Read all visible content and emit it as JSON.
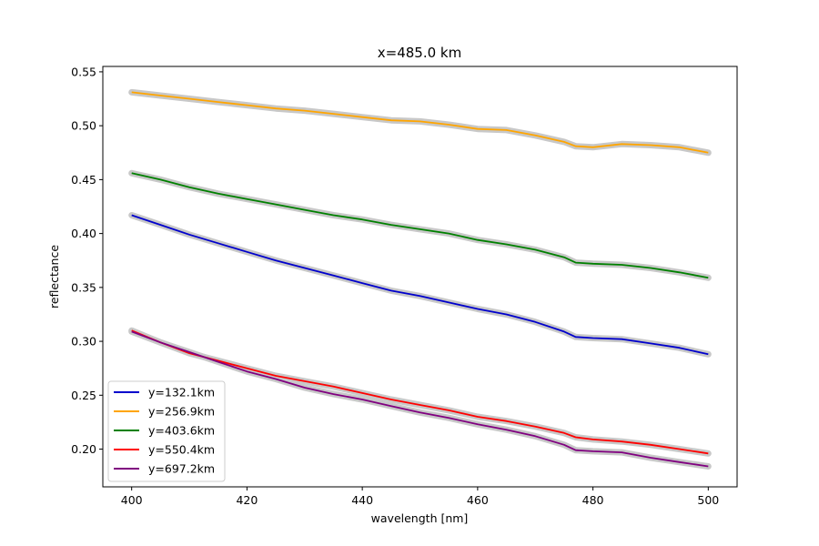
{
  "chart_data": {
    "type": "line",
    "title": "x=485.0 km",
    "xlabel": "wavelength [nm]",
    "ylabel": "reflectance",
    "xlim": [
      395,
      505
    ],
    "ylim": [
      0.165,
      0.555
    ],
    "xticks": [
      400,
      420,
      440,
      460,
      480,
      500
    ],
    "yticks": [
      0.2,
      0.25,
      0.3,
      0.35,
      0.4,
      0.45,
      0.5,
      0.55
    ],
    "ytick_labels": [
      "0.20",
      "0.25",
      "0.30",
      "0.35",
      "0.40",
      "0.45",
      "0.50",
      "0.55"
    ],
    "xtick_labels": [
      "400",
      "420",
      "440",
      "460",
      "480",
      "500"
    ],
    "grid": false,
    "legend_position": "lower-left",
    "uncertainty_band_color": "#c8c8c8",
    "x": [
      400,
      405,
      410,
      415,
      420,
      425,
      430,
      435,
      440,
      445,
      450,
      455,
      460,
      465,
      470,
      475,
      477,
      480,
      485,
      490,
      495,
      500
    ],
    "series": [
      {
        "name": "y=132.1km",
        "color": "#0000cc",
        "values": [
          0.417,
          0.408,
          0.399,
          0.391,
          0.383,
          0.375,
          0.368,
          0.361,
          0.354,
          0.347,
          0.342,
          0.336,
          0.33,
          0.325,
          0.318,
          0.309,
          0.304,
          0.303,
          0.302,
          0.298,
          0.294,
          0.288
        ]
      },
      {
        "name": "y=256.9km",
        "color": "#ffa500",
        "values": [
          0.531,
          0.528,
          0.525,
          0.522,
          0.519,
          0.516,
          0.514,
          0.511,
          0.508,
          0.505,
          0.504,
          0.501,
          0.497,
          0.496,
          0.491,
          0.485,
          0.481,
          0.48,
          0.483,
          0.482,
          0.48,
          0.475
        ]
      },
      {
        "name": "y=403.6km",
        "color": "#008000",
        "values": [
          0.456,
          0.45,
          0.443,
          0.437,
          0.432,
          0.427,
          0.422,
          0.417,
          0.413,
          0.408,
          0.404,
          0.4,
          0.394,
          0.39,
          0.385,
          0.378,
          0.373,
          0.372,
          0.371,
          0.368,
          0.364,
          0.359
        ]
      },
      {
        "name": "y=550.4km",
        "color": "#ff0000",
        "values": [
          0.31,
          0.299,
          0.289,
          0.282,
          0.275,
          0.268,
          0.263,
          0.258,
          0.252,
          0.246,
          0.241,
          0.236,
          0.23,
          0.226,
          0.221,
          0.215,
          0.211,
          0.209,
          0.207,
          0.204,
          0.2,
          0.196
        ]
      },
      {
        "name": "y=697.2km",
        "color": "#800080",
        "values": [
          0.309,
          0.299,
          0.29,
          0.281,
          0.272,
          0.265,
          0.257,
          0.251,
          0.246,
          0.24,
          0.234,
          0.229,
          0.223,
          0.218,
          0.212,
          0.204,
          0.199,
          0.198,
          0.197,
          0.192,
          0.188,
          0.184
        ]
      }
    ]
  }
}
